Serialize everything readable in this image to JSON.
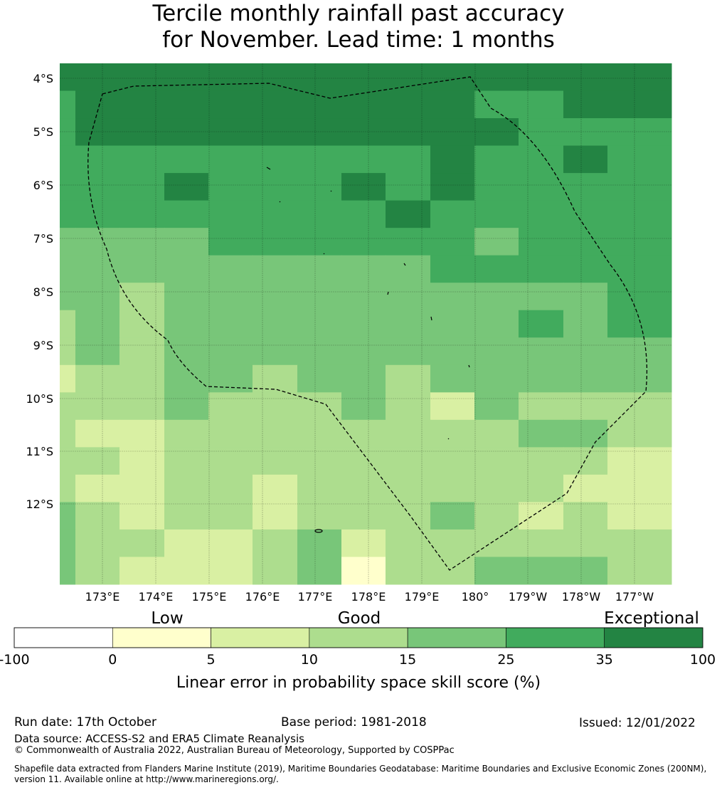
{
  "title": {
    "line1": "Tercile monthly rainfall past accuracy",
    "line2": "for November. Lead time: 1 months"
  },
  "map": {
    "lat_labels": [
      "4°S",
      "5°S",
      "6°S",
      "7°S",
      "8°S",
      "9°S",
      "10°S",
      "11°S",
      "12°S"
    ],
    "lon_labels": [
      "173°E",
      "174°E",
      "175°E",
      "176°E",
      "177°E",
      "178°E",
      "179°E",
      "180°",
      "179°W",
      "178°W",
      "177°W"
    ],
    "grid": [
      [
        6,
        6,
        6,
        6,
        6,
        6,
        6,
        6,
        6,
        6,
        6,
        6,
        6,
        6
      ],
      [
        5,
        6,
        6,
        6,
        6,
        6,
        6,
        6,
        6,
        6,
        5,
        5,
        6,
        6
      ],
      [
        5,
        6,
        6,
        6,
        6,
        6,
        6,
        6,
        6,
        6,
        6,
        5,
        5,
        5
      ],
      [
        5,
        5,
        5,
        5,
        5,
        5,
        5,
        5,
        5,
        6,
        5,
        5,
        6,
        5
      ],
      [
        5,
        5,
        5,
        6,
        5,
        5,
        5,
        6,
        5,
        6,
        5,
        5,
        5,
        5
      ],
      [
        5,
        5,
        5,
        5,
        5,
        5,
        5,
        5,
        6,
        5,
        5,
        5,
        5,
        5
      ],
      [
        4,
        4,
        4,
        4,
        5,
        5,
        5,
        5,
        5,
        5,
        4,
        5,
        5,
        5
      ],
      [
        4,
        4,
        4,
        4,
        4,
        4,
        4,
        4,
        4,
        5,
        5,
        5,
        5,
        5
      ],
      [
        4,
        4,
        3,
        4,
        4,
        4,
        4,
        4,
        4,
        4,
        4,
        4,
        4,
        5
      ],
      [
        3,
        4,
        3,
        4,
        4,
        4,
        4,
        4,
        4,
        4,
        4,
        5,
        4,
        5
      ],
      [
        3,
        4,
        3,
        4,
        4,
        4,
        4,
        4,
        4,
        4,
        4,
        4,
        4,
        4
      ],
      [
        2,
        3,
        3,
        4,
        4,
        3,
        4,
        4,
        3,
        4,
        4,
        4,
        4,
        4
      ],
      [
        3,
        3,
        3,
        4,
        3,
        3,
        3,
        4,
        3,
        2,
        4,
        3,
        3,
        3
      ],
      [
        3,
        2,
        2,
        3,
        3,
        3,
        3,
        3,
        3,
        3,
        3,
        4,
        4,
        3
      ],
      [
        3,
        3,
        2,
        3,
        3,
        3,
        3,
        3,
        3,
        3,
        3,
        3,
        3,
        2
      ],
      [
        3,
        2,
        2,
        3,
        3,
        2,
        3,
        3,
        3,
        3,
        3,
        3,
        2,
        2
      ],
      [
        4,
        3,
        2,
        3,
        3,
        2,
        3,
        3,
        3,
        4,
        3,
        2,
        3,
        2
      ],
      [
        4,
        3,
        3,
        2,
        2,
        3,
        4,
        2,
        3,
        3,
        3,
        3,
        3,
        3
      ],
      [
        4,
        3,
        2,
        2,
        2,
        3,
        4,
        1,
        3,
        3,
        4,
        4,
        4,
        3
      ]
    ]
  },
  "colorbar": {
    "category_labels": [
      "Low",
      "Good",
      "Exceptional"
    ],
    "tick_labels": [
      "-100",
      "0",
      "5",
      "10",
      "15",
      "25",
      "35",
      "100"
    ],
    "colors": [
      "#ffffff",
      "#ffffcc",
      "#d9f0a3",
      "#addd8e",
      "#78c679",
      "#41ab5d",
      "#238443"
    ],
    "label": "Linear error in probability space skill score (%)"
  },
  "footer": {
    "run_date": "Run date: 17th October",
    "base_period": "Base period: 1981-2018",
    "issued": "Issued: 12/01/2022",
    "data_source": "Data source: ACCESS-S2 and ERA5 Climate Reanalysis",
    "copyright": "© Commonwealth of Australia 2022, Australian Bureau of Meteorology, Supported by COSPPac",
    "shapefile1": "Shapefile data extracted from Flanders Marine Institute (2019), Maritime Boundaries Geodatabase: Maritime Boundaries and Exclusive Economic Zones (200NM),",
    "shapefile2": "version 11. Available online at http://www.marineregions.org/."
  }
}
